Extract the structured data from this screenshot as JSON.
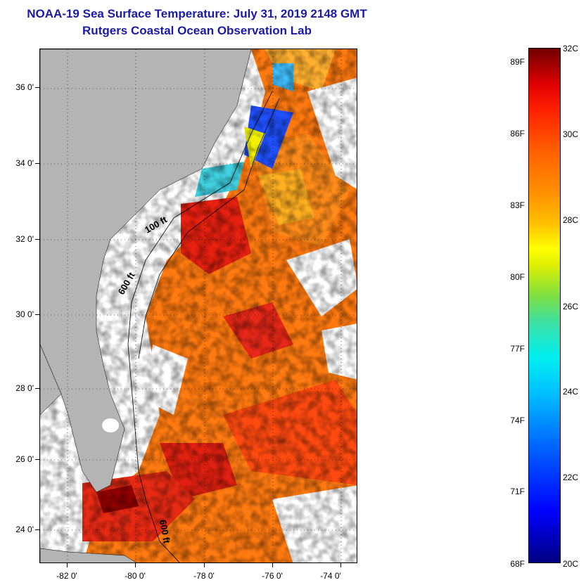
{
  "title_line1": "NOAA-19 Sea Surface Temperature:  July 31, 2019 2148 GMT",
  "title_line2": "Rutgers Coastal Ocean Observation Lab",
  "map": {
    "lat_labels": [
      "36 0'",
      "34 0'",
      "32 0'",
      "30 0'",
      "28 0'",
      "26 0'",
      "24 0'"
    ],
    "lon_labels": [
      "-82 0'",
      "-80 0'",
      "-78 0'",
      "-76 0'",
      "-74 0'"
    ],
    "contour_labels": [
      "100 ft",
      "600 ft",
      "600 ft"
    ],
    "land_color": "#b4b4b4",
    "cloud_color": "#ffffff"
  },
  "colorbar": {
    "celsius_labels": [
      "32C",
      "30C",
      "28C",
      "26C",
      "24C",
      "22C",
      "20C"
    ],
    "fahrenheit_labels": [
      "89F",
      "86F",
      "83F",
      "80F",
      "77F",
      "74F",
      "71F",
      "68F"
    ],
    "min_c": 20,
    "max_c": 32
  }
}
